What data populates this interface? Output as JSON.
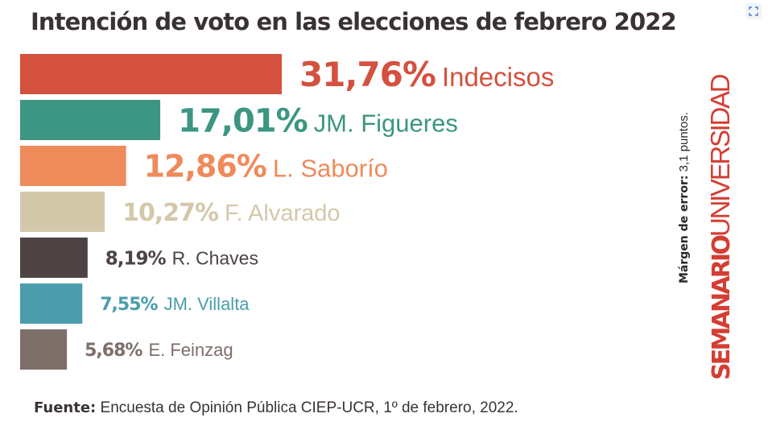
{
  "title": "Intención de voto en las elecciones  de febrero 2022",
  "chart_data": {
    "type": "bar",
    "orientation": "horizontal",
    "title": "Intención de voto en las elecciones  de febrero 2022",
    "categories": [
      "Indecisos",
      "JM. Figueres",
      "L. Saborío",
      "F. Alvarado",
      "R. Chaves",
      "JM. Villalta",
      "E. Feinzag"
    ],
    "values": [
      31.76,
      17.01,
      12.86,
      10.27,
      8.19,
      7.55,
      5.68
    ],
    "value_labels": [
      "31,76%",
      "17,01%",
      "12,86%",
      "10,27%",
      "8,19%",
      "7,55%",
      "5,68%"
    ],
    "colors": [
      "#d4513f",
      "#3c9682",
      "#ef8a5b",
      "#d3c8aa",
      "#4d4343",
      "#4b9dae",
      "#7e6e6a"
    ],
    "grid": false,
    "legend": "none"
  },
  "margin_note": {
    "label": "Márgen de error:",
    "text": " 3,1 puntos."
  },
  "logo": {
    "bold": "SEMANARIO",
    "light": "UNIVERSIDAD"
  },
  "source": {
    "label": "Fuente:",
    "text": " Encuesta de Opinión Pública CIEP-UCR, 1º de febrero, 2022."
  },
  "icons": {
    "expand": "expand-icon"
  }
}
